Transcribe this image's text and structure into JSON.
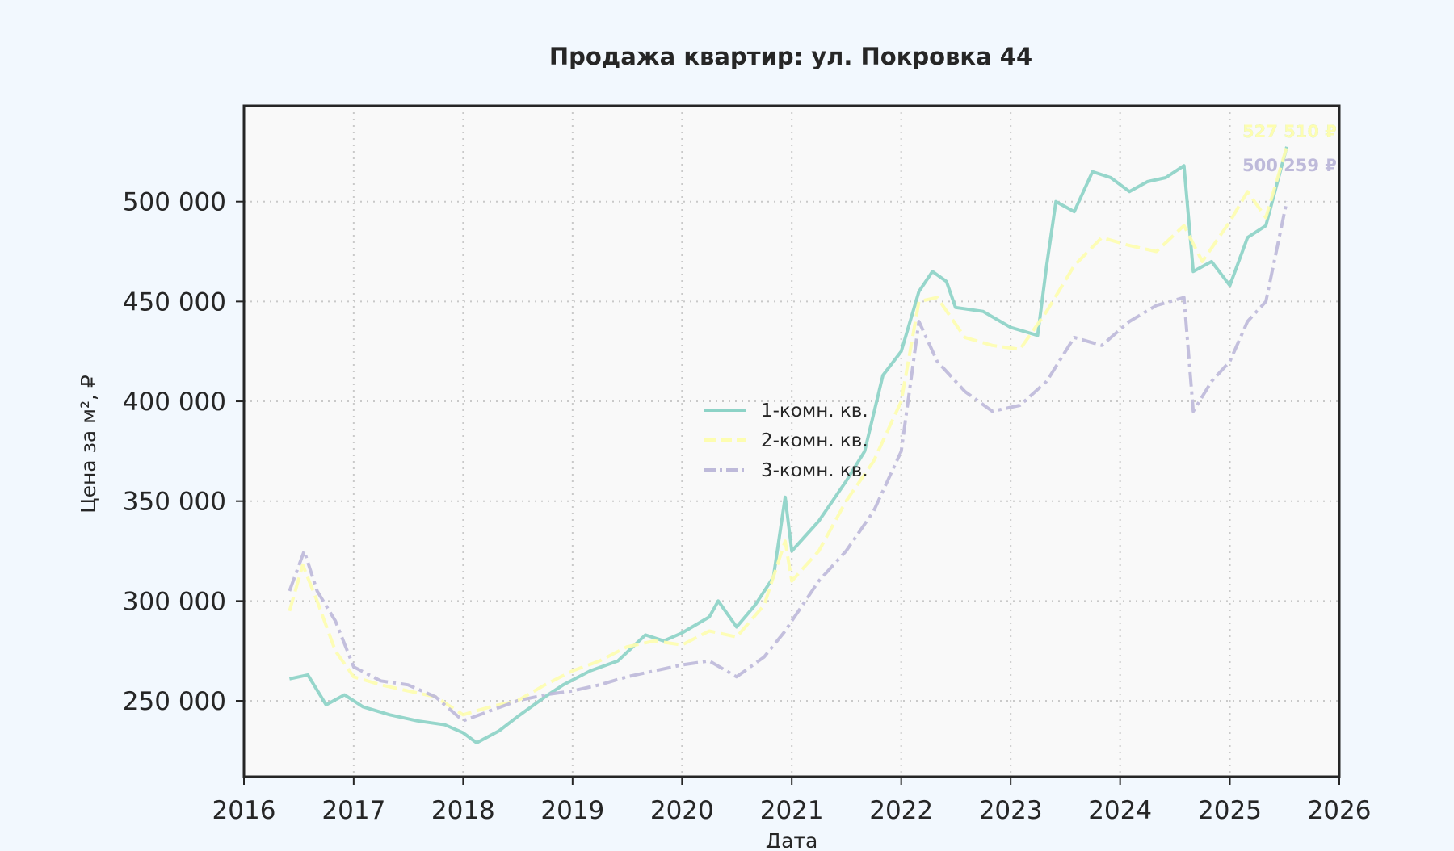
{
  "chart_data": {
    "type": "line",
    "title": "Продажа квартир: ул. Покровка 44",
    "xlabel": "Дата",
    "ylabel": "Цена за м², ₽",
    "xlim": [
      "2016-01-01",
      "2026-01-01"
    ],
    "ylim": [
      212000,
      548000
    ],
    "x_ticks": [
      "2016",
      "2017",
      "2018",
      "2019",
      "2020",
      "2021",
      "2022",
      "2023",
      "2024",
      "2025",
      "2026"
    ],
    "y_ticks": [
      {
        "value": 250000,
        "label": "250 000"
      },
      {
        "value": 300000,
        "label": "300 000"
      },
      {
        "value": 350000,
        "label": "350 000"
      },
      {
        "value": 400000,
        "label": "400 000"
      },
      {
        "value": 450000,
        "label": "450 000"
      },
      {
        "value": 500000,
        "label": "500 000"
      }
    ],
    "grid": true,
    "legend_position": "center",
    "series": [
      {
        "name": "1-комн. кв.",
        "color": "#8dd3c7",
        "dash": "solid",
        "end_label": "527 510 ₽",
        "points": [
          [
            "2016-06-01",
            261000
          ],
          [
            "2016-08-01",
            263000
          ],
          [
            "2016-10-01",
            248000
          ],
          [
            "2016-12-01",
            253000
          ],
          [
            "2017-02-01",
            247000
          ],
          [
            "2017-05-01",
            243000
          ],
          [
            "2017-08-01",
            240000
          ],
          [
            "2017-11-01",
            238000
          ],
          [
            "2018-01-01",
            234000
          ],
          [
            "2018-02-15",
            229000
          ],
          [
            "2018-05-01",
            235000
          ],
          [
            "2018-07-01",
            242000
          ],
          [
            "2018-10-01",
            252000
          ],
          [
            "2018-12-01",
            258000
          ],
          [
            "2019-03-01",
            265000
          ],
          [
            "2019-06-01",
            270000
          ],
          [
            "2019-09-01",
            283000
          ],
          [
            "2019-11-01",
            280000
          ],
          [
            "2020-01-01",
            284000
          ],
          [
            "2020-04-01",
            292000
          ],
          [
            "2020-05-01",
            300000
          ],
          [
            "2020-07-01",
            287000
          ],
          [
            "2020-09-01",
            298000
          ],
          [
            "2020-11-01",
            312000
          ],
          [
            "2020-12-10",
            352000
          ],
          [
            "2021-01-01",
            325000
          ],
          [
            "2021-04-01",
            340000
          ],
          [
            "2021-07-01",
            360000
          ],
          [
            "2021-09-01",
            375000
          ],
          [
            "2021-11-01",
            413000
          ],
          [
            "2022-01-01",
            425000
          ],
          [
            "2022-03-01",
            455000
          ],
          [
            "2022-04-15",
            465000
          ],
          [
            "2022-06-01",
            460000
          ],
          [
            "2022-07-01",
            447000
          ],
          [
            "2022-10-01",
            445000
          ],
          [
            "2023-01-01",
            437000
          ],
          [
            "2023-04-01",
            433000
          ],
          [
            "2023-05-01",
            468000
          ],
          [
            "2023-06-01",
            500000
          ],
          [
            "2023-08-01",
            495000
          ],
          [
            "2023-10-01",
            515000
          ],
          [
            "2023-12-01",
            512000
          ],
          [
            "2024-02-01",
            505000
          ],
          [
            "2024-04-01",
            510000
          ],
          [
            "2024-06-01",
            512000
          ],
          [
            "2024-08-01",
            518000
          ],
          [
            "2024-09-01",
            465000
          ],
          [
            "2024-11-01",
            470000
          ],
          [
            "2025-01-01",
            458000
          ],
          [
            "2025-03-01",
            482000
          ],
          [
            "2025-05-01",
            488000
          ],
          [
            "2025-07-10",
            527510
          ]
        ]
      },
      {
        "name": "2-комн. кв.",
        "color": "#fdfdb0",
        "dash": "dashed",
        "end_label": "527 510 ₽",
        "points": [
          [
            "2016-06-01",
            295000
          ],
          [
            "2016-07-15",
            318000
          ],
          [
            "2016-09-01",
            300000
          ],
          [
            "2016-11-01",
            275000
          ],
          [
            "2017-01-01",
            262000
          ],
          [
            "2017-04-01",
            258000
          ],
          [
            "2017-07-01",
            255000
          ],
          [
            "2017-10-01",
            252000
          ],
          [
            "2018-01-01",
            243000
          ],
          [
            "2018-04-01",
            247000
          ],
          [
            "2018-07-01",
            250000
          ],
          [
            "2018-10-01",
            258000
          ],
          [
            "2019-01-01",
            265000
          ],
          [
            "2019-04-01",
            270000
          ],
          [
            "2019-07-01",
            277000
          ],
          [
            "2019-10-01",
            280000
          ],
          [
            "2020-01-01",
            278000
          ],
          [
            "2020-04-01",
            285000
          ],
          [
            "2020-07-01",
            282000
          ],
          [
            "2020-10-01",
            298000
          ],
          [
            "2020-12-10",
            330000
          ],
          [
            "2021-01-01",
            310000
          ],
          [
            "2021-04-01",
            325000
          ],
          [
            "2021-07-01",
            350000
          ],
          [
            "2021-10-01",
            370000
          ],
          [
            "2022-01-01",
            400000
          ],
          [
            "2022-03-01",
            450000
          ],
          [
            "2022-05-01",
            452000
          ],
          [
            "2022-08-01",
            432000
          ],
          [
            "2022-11-01",
            428000
          ],
          [
            "2023-02-01",
            426000
          ],
          [
            "2023-05-01",
            445000
          ],
          [
            "2023-08-01",
            468000
          ],
          [
            "2023-11-01",
            482000
          ],
          [
            "2024-02-01",
            478000
          ],
          [
            "2024-05-01",
            475000
          ],
          [
            "2024-08-01",
            488000
          ],
          [
            "2024-10-01",
            470000
          ],
          [
            "2025-01-01",
            490000
          ],
          [
            "2025-03-01",
            505000
          ],
          [
            "2025-05-01",
            492000
          ],
          [
            "2025-07-10",
            527510
          ]
        ]
      },
      {
        "name": "3-комн. кв.",
        "color": "#bebada",
        "dash": "dashdot",
        "end_label": "500 259 ₽",
        "points": [
          [
            "2016-06-01",
            305000
          ],
          [
            "2016-07-20",
            325000
          ],
          [
            "2016-09-01",
            305000
          ],
          [
            "2016-11-01",
            290000
          ],
          [
            "2017-01-01",
            267000
          ],
          [
            "2017-04-01",
            260000
          ],
          [
            "2017-07-01",
            258000
          ],
          [
            "2017-10-01",
            252000
          ],
          [
            "2018-01-01",
            240000
          ],
          [
            "2018-04-01",
            245000
          ],
          [
            "2018-07-01",
            250000
          ],
          [
            "2018-10-01",
            253000
          ],
          [
            "2019-01-01",
            255000
          ],
          [
            "2019-04-01",
            258000
          ],
          [
            "2019-07-01",
            262000
          ],
          [
            "2019-10-01",
            265000
          ],
          [
            "2020-01-01",
            268000
          ],
          [
            "2020-04-01",
            270000
          ],
          [
            "2020-07-01",
            262000
          ],
          [
            "2020-10-01",
            272000
          ],
          [
            "2020-12-10",
            285000
          ],
          [
            "2021-01-01",
            290000
          ],
          [
            "2021-04-01",
            310000
          ],
          [
            "2021-07-01",
            325000
          ],
          [
            "2021-10-01",
            345000
          ],
          [
            "2022-01-01",
            375000
          ],
          [
            "2022-03-01",
            440000
          ],
          [
            "2022-05-01",
            420000
          ],
          [
            "2022-08-01",
            405000
          ],
          [
            "2022-11-01",
            395000
          ],
          [
            "2023-02-01",
            398000
          ],
          [
            "2023-05-01",
            410000
          ],
          [
            "2023-08-01",
            432000
          ],
          [
            "2023-11-01",
            428000
          ],
          [
            "2024-02-01",
            440000
          ],
          [
            "2024-05-01",
            448000
          ],
          [
            "2024-08-01",
            452000
          ],
          [
            "2024-09-01",
            395000
          ],
          [
            "2024-11-01",
            410000
          ],
          [
            "2025-01-01",
            420000
          ],
          [
            "2025-03-01",
            440000
          ],
          [
            "2025-05-01",
            450000
          ],
          [
            "2025-07-10",
            500259
          ]
        ]
      }
    ]
  }
}
